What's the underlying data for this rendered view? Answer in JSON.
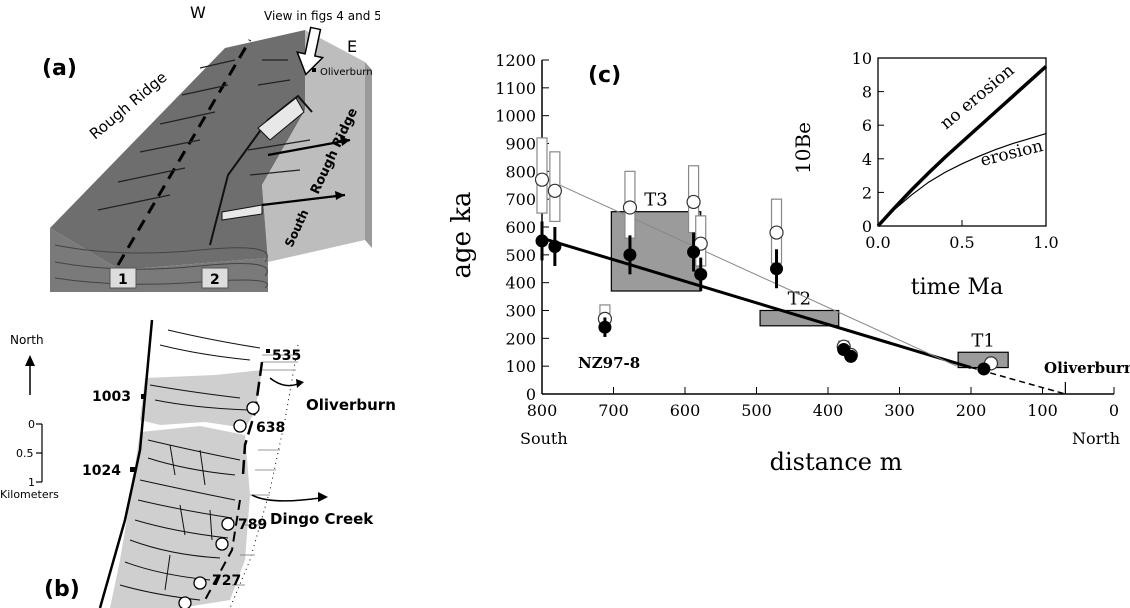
{
  "panel_a": {
    "label": "(a)",
    "west": "W",
    "east": "E",
    "view_note": "View in figs 4 and 5",
    "ridge_name": "Rough Ridge",
    "south_rough_ridge": "South Rough Ridge",
    "south_label": "South",
    "oliverburn": "Oliverburn",
    "fault1": "1",
    "fault2": "2"
  },
  "panel_b": {
    "label": "(b)",
    "north": "North",
    "scale_ticks": [
      "0",
      "0.5",
      "1"
    ],
    "scale_unit": "Kilometers",
    "elev_1003": "1003",
    "elev_1024": "1024",
    "elev_535": "535",
    "elev_638": "638",
    "elev_789": "789",
    "elev_727": "727",
    "oliverburn": "Oliverburn",
    "dingo_creek": "Dingo Creek"
  },
  "chart_data": [
    {
      "type": "scatter",
      "panel_label": "(c)",
      "title": "",
      "xlabel": "distance m",
      "ylabel": "age ka",
      "xlim": [
        800,
        0
      ],
      "ylim": [
        0,
        1200
      ],
      "x_ticks": [
        800,
        700,
        600,
        500,
        400,
        300,
        200,
        100,
        0
      ],
      "y_ticks": [
        0,
        100,
        200,
        300,
        400,
        500,
        600,
        700,
        800,
        900,
        1000,
        1100,
        1200
      ],
      "x_end_labels": {
        "left": "South",
        "right": "North"
      },
      "series": [
        {
          "style": "filled",
          "points": [
            {
              "x": 800,
              "y": 550,
              "err": 70
            },
            {
              "x": 782,
              "y": 530,
              "err": 70
            },
            {
              "x": 712,
              "y": 240,
              "err": 35
            },
            {
              "x": 677,
              "y": 500,
              "err": 70
            },
            {
              "x": 588,
              "y": 510,
              "err": 70
            },
            {
              "x": 578,
              "y": 430,
              "err": 60
            },
            {
              "x": 472,
              "y": 450,
              "err": 70
            },
            {
              "x": 378,
              "y": 160,
              "err": 20
            },
            {
              "x": 368,
              "y": 135,
              "err": 15
            },
            {
              "x": 182,
              "y": 90,
              "err": 10
            }
          ]
        },
        {
          "style": "open",
          "points": [
            {
              "x": 800,
              "y": 770,
              "lo": 650,
              "hi": 920
            },
            {
              "x": 782,
              "y": 730,
              "lo": 620,
              "hi": 870
            },
            {
              "x": 712,
              "y": 270,
              "lo": 230,
              "hi": 320
            },
            {
              "x": 677,
              "y": 670,
              "lo": 560,
              "hi": 800
            },
            {
              "x": 588,
              "y": 690,
              "lo": 580,
              "hi": 820
            },
            {
              "x": 578,
              "y": 540,
              "lo": 460,
              "hi": 640
            },
            {
              "x": 472,
              "y": 580,
              "lo": 470,
              "hi": 700
            },
            {
              "x": 378,
              "y": 170,
              "lo": 150,
              "hi": 190
            },
            {
              "x": 368,
              "y": 140,
              "lo": 125,
              "hi": 155
            },
            {
              "x": 172,
              "y": 110,
              "lo": 95,
              "hi": 125
            }
          ]
        }
      ],
      "fit_lines": [
        {
          "style": "thick",
          "x": [
            800,
            200
          ],
          "y": [
            560,
            95
          ]
        },
        {
          "style": "thin",
          "x": [
            800,
            220
          ],
          "y": [
            780,
            100
          ]
        },
        {
          "style": "dashed",
          "x": [
            200,
            68
          ],
          "y": [
            95,
            0
          ]
        }
      ],
      "terraces": [
        {
          "label": "T3",
          "x0": 703,
          "x1": 578,
          "y0": 370,
          "y1": 655
        },
        {
          "label": "T2",
          "x0": 495,
          "x1": 385,
          "y0": 245,
          "y1": 300
        },
        {
          "label": "T1",
          "x0": 218,
          "x1": 148,
          "y0": 95,
          "y1": 150
        }
      ],
      "annotations": {
        "sample": "NZ97-8",
        "site": "Oliverburn",
        "site_x": 68
      }
    },
    {
      "type": "line",
      "xlabel": "time Ma",
      "ylabel": "10Be",
      "xlim": [
        0,
        1.0
      ],
      "ylim": [
        0,
        10
      ],
      "x_ticks": [
        "0.0",
        "0.5",
        "1.0"
      ],
      "y_ticks": [
        0,
        2,
        4,
        6,
        8,
        10
      ],
      "series": [
        {
          "name": "no erosion",
          "x": [
            0,
            0.1,
            0.2,
            0.3,
            0.4,
            0.5,
            0.6,
            0.7,
            0.8,
            0.9,
            1.0
          ],
          "y": [
            0,
            1.1,
            2.15,
            3.15,
            4.1,
            5.0,
            5.9,
            6.8,
            7.7,
            8.6,
            9.5
          ]
        },
        {
          "name": "erosion",
          "x": [
            0,
            0.1,
            0.2,
            0.3,
            0.4,
            0.5,
            0.6,
            0.7,
            0.8,
            0.9,
            1.0
          ],
          "y": [
            0,
            1.0,
            1.85,
            2.6,
            3.2,
            3.7,
            4.15,
            4.55,
            4.9,
            5.2,
            5.5
          ]
        }
      ]
    }
  ]
}
